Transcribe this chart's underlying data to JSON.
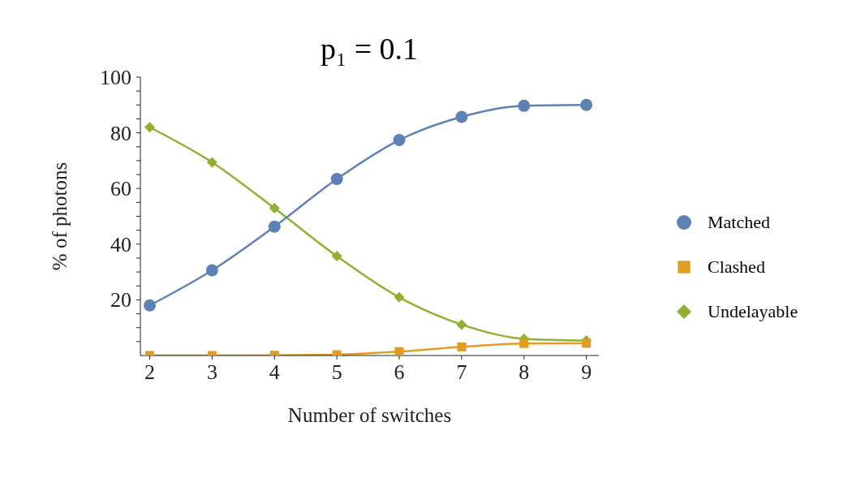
{
  "chart_data": {
    "type": "line",
    "title": "p₁ = 0.1",
    "xlabel": "Number of switches",
    "ylabel": "% of photons",
    "x": [
      2,
      3,
      4,
      5,
      6,
      7,
      8,
      9
    ],
    "series": [
      {
        "name": "Matched",
        "color": "#5e81b5",
        "marker": "circle",
        "values": [
          18,
          30.6,
          46.3,
          63.4,
          77.4,
          85.7,
          89.7,
          90
        ]
      },
      {
        "name": "Clashed",
        "color": "#e19c24",
        "marker": "square",
        "values": [
          0,
          0,
          0.1,
          0.3,
          1.4,
          3.1,
          4.3,
          4.4
        ]
      },
      {
        "name": "Undelayable",
        "color": "#8fb032",
        "marker": "diamond",
        "values": [
          82,
          69.4,
          52.9,
          35.7,
          20.9,
          11.1,
          6,
          5.4
        ]
      }
    ],
    "xlim": [
      1.85,
      9.2
    ],
    "xticks": [
      2,
      3,
      4,
      5,
      6,
      7,
      8,
      9
    ],
    "ylim": [
      0,
      100
    ],
    "yticks": [
      {
        "value": 5,
        "label": null
      },
      {
        "value": 10,
        "label": null
      },
      {
        "value": 15,
        "label": null
      },
      20,
      {
        "value": 25,
        "label": null
      },
      {
        "value": 30,
        "label": null
      },
      {
        "value": 35,
        "label": null
      },
      40,
      {
        "value": 45,
        "label": null
      },
      {
        "value": 50,
        "label": null
      },
      {
        "value": 55,
        "label": null
      },
      60,
      {
        "value": 65,
        "label": null
      },
      {
        "value": 70,
        "label": null
      },
      {
        "value": 75,
        "label": null
      },
      80,
      {
        "value": 85,
        "label": null
      },
      {
        "value": 90,
        "label": null
      },
      {
        "value": 95,
        "label": null
      },
      100
    ],
    "grid": false,
    "legend": "right",
    "line_style": "solid"
  }
}
